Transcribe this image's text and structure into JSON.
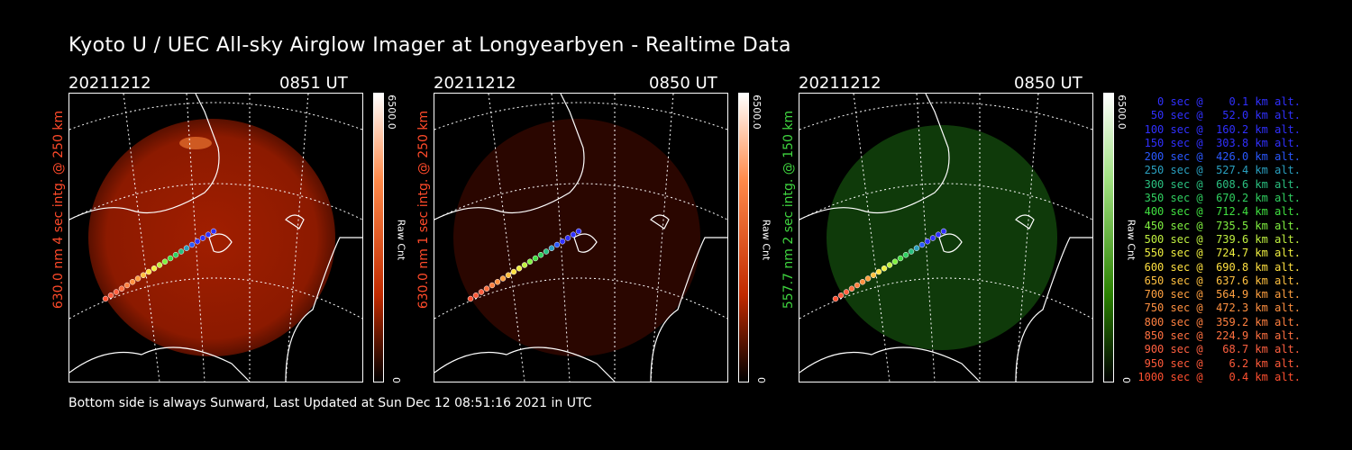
{
  "title": "Kyoto U / UEC All-sky Airglow Imager at Longyearbyen - Realtime Data",
  "footer": "Bottom side is always Sunward, Last Updated at Sun Dec 12 08:51:16 2021 in UTC",
  "panels": [
    {
      "date": "20211212",
      "time": "0851 UT",
      "ylabel": "630.0 nm  4 sec intg. @ 250 km",
      "label_color": "#ff4a2a",
      "cbar_max": "6500.0",
      "cbar_min": "0",
      "cbar_label": "Raw Cnt",
      "cbar_color": "#ff2a00",
      "glow_color": "#8c1a00"
    },
    {
      "date": "20211212",
      "time": "0850 UT",
      "ylabel": "630.0 nm  1 sec intg. @ 250 km",
      "label_color": "#ff4a2a",
      "cbar_max": "6500.0",
      "cbar_min": "0",
      "cbar_label": "Raw Cnt",
      "cbar_color": "#ff2a00",
      "glow_color": "#2a0600"
    },
    {
      "date": "20211212",
      "time": "0850 UT",
      "ylabel": "557.7 nm  2 sec intg. @ 150 km",
      "label_color": "#3fd53f",
      "cbar_max": "6500.0",
      "cbar_min": "0",
      "cbar_label": "Raw Cnt",
      "cbar_color": "#2aa000",
      "glow_color": "#0f3a0a"
    }
  ],
  "legend": [
    {
      "text": "   0 sec @    0.1 km alt.",
      "color": "#3030ff"
    },
    {
      "text": "  50 sec @   52.0 km alt.",
      "color": "#3030ff"
    },
    {
      "text": " 100 sec @  160.2 km alt.",
      "color": "#3030ff"
    },
    {
      "text": " 150 sec @  303.8 km alt.",
      "color": "#3030ff"
    },
    {
      "text": " 200 sec @  426.0 km alt.",
      "color": "#2a58ff"
    },
    {
      "text": " 250 sec @  527.4 km alt.",
      "color": "#2aa0c0"
    },
    {
      "text": " 300 sec @  608.6 km alt.",
      "color": "#2ac080"
    },
    {
      "text": " 350 sec @  670.2 km alt.",
      "color": "#30d060"
    },
    {
      "text": " 400 sec @  712.4 km alt.",
      "color": "#40e040"
    },
    {
      "text": " 450 sec @  735.5 km alt.",
      "color": "#80f040"
    },
    {
      "text": " 500 sec @  739.6 km alt.",
      "color": "#c0f040"
    },
    {
      "text": " 550 sec @  724.7 km alt.",
      "color": "#f0f040"
    },
    {
      "text": " 600 sec @  690.8 km alt.",
      "color": "#ffe040"
    },
    {
      "text": " 650 sec @  637.6 km alt.",
      "color": "#ffc040"
    },
    {
      "text": " 700 sec @  564.9 km alt.",
      "color": "#ffa040"
    },
    {
      "text": " 750 sec @  472.3 km alt.",
      "color": "#ff9040"
    },
    {
      "text": " 800 sec @  359.2 km alt.",
      "color": "#ff8040"
    },
    {
      "text": " 850 sec @  224.9 km alt.",
      "color": "#ff7040"
    },
    {
      "text": " 900 sec @   68.7 km alt.",
      "color": "#ff6040"
    },
    {
      "text": " 950 sec @    6.2 km alt.",
      "color": "#ff5a3a"
    },
    {
      "text": "1000 sec @    0.4 km alt.",
      "color": "#ff5030"
    }
  ]
}
